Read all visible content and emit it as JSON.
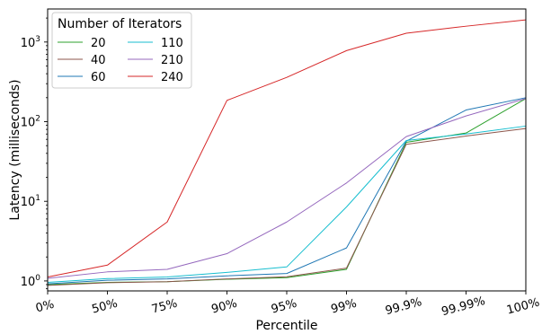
{
  "chart_data": {
    "type": "line",
    "title": "",
    "xlabel": "Percentile",
    "ylabel": "Latency (milliseconds)",
    "yscale": "log",
    "ylim": [
      0.75,
      2600
    ],
    "categories": [
      "0%",
      "50%",
      "75%",
      "90%",
      "95%",
      "99%",
      "99.9%",
      "99.99%",
      "100%"
    ],
    "y_ticks": [
      {
        "value": 1,
        "base": "10",
        "exp": "0"
      },
      {
        "value": 10,
        "base": "10",
        "exp": "1"
      },
      {
        "value": 100,
        "base": "10",
        "exp": "2"
      },
      {
        "value": 1000,
        "base": "10",
        "exp": "3"
      }
    ],
    "grid": false,
    "legend": {
      "title": "Number of Iterators",
      "position": "top-left"
    },
    "series": [
      {
        "name": "20",
        "color": "#2ca02c",
        "values": [
          0.9,
          0.96,
          0.98,
          1.05,
          1.1,
          1.4,
          55,
          72,
          195
        ]
      },
      {
        "name": "40",
        "color": "#8c564b",
        "values": [
          0.88,
          0.95,
          0.98,
          1.06,
          1.13,
          1.45,
          52,
          66,
          82
        ]
      },
      {
        "name": "60",
        "color": "#1f77b4",
        "values": [
          0.92,
          1.02,
          1.06,
          1.16,
          1.24,
          2.6,
          57,
          140,
          200
        ]
      },
      {
        "name": "110",
        "color": "#17becf",
        "values": [
          0.96,
          1.07,
          1.12,
          1.28,
          1.5,
          8.5,
          58,
          70,
          88
        ]
      },
      {
        "name": "210",
        "color": "#9467bd",
        "values": [
          1.08,
          1.3,
          1.4,
          2.2,
          5.5,
          17,
          65,
          118,
          195
        ]
      },
      {
        "name": "240",
        "color": "#d62728",
        "values": [
          1.12,
          1.58,
          5.5,
          185,
          360,
          780,
          1290,
          1580,
          1900
        ]
      }
    ]
  }
}
